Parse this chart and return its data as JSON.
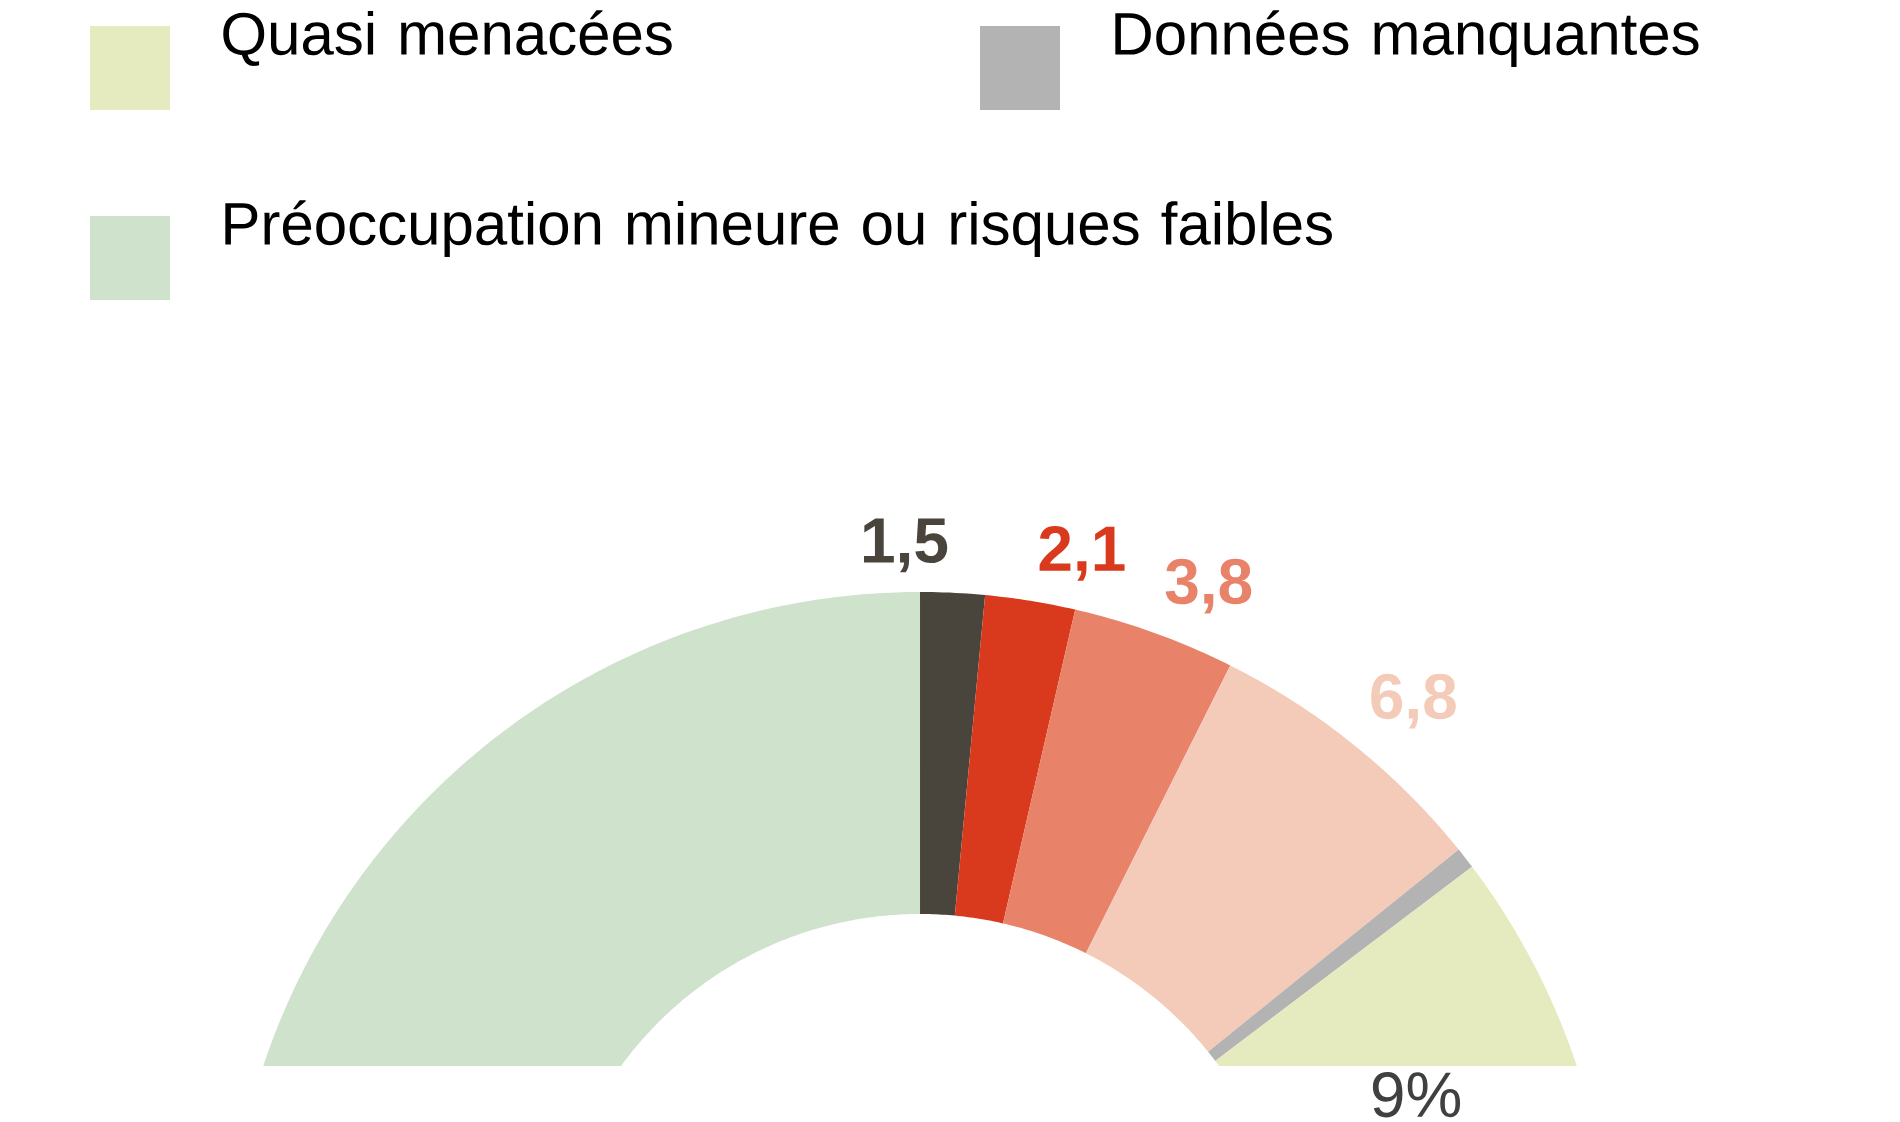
{
  "chart_data": {
    "type": "donut",
    "categories": [
      null,
      null,
      null,
      null,
      "Données manquantes",
      "Quasi menacées",
      "Préoccupation mineure ou risques faibles"
    ],
    "values": [
      1.5,
      2.1,
      3.8,
      6.8,
      0.5,
      9,
      76.3
    ],
    "colors": [
      "#4a453c",
      "#d93a1e",
      "#e8836a",
      "#f3cbb8",
      "#b3b3b3",
      "#e6ebbf",
      "#cfe3cc"
    ],
    "value_labels": [
      "1,5",
      "2,1",
      "3,8",
      "6,8",
      null,
      "9%",
      null
    ],
    "legend": "top"
  }
}
